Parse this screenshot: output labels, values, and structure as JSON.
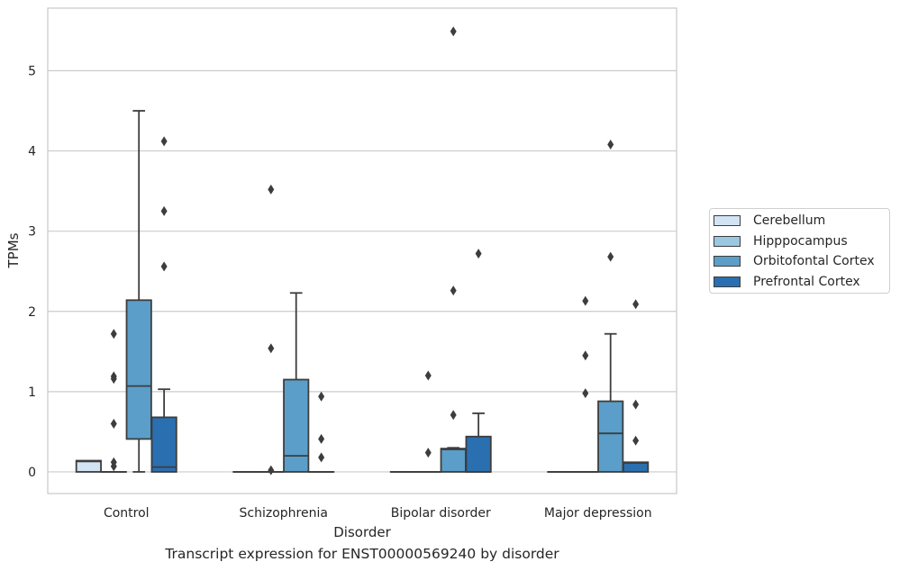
{
  "chart_data": {
    "type": "box",
    "xlabel": "Disorder",
    "ylabel": "TPMs",
    "caption": "Transcript expression for ENST00000569240 by disorder",
    "categories": [
      "Control",
      "Schizophrenia",
      "Bipolar disorder",
      "Major depression"
    ],
    "ylim": [
      -0.27,
      5.78
    ],
    "yticks": [
      0,
      1,
      2,
      3,
      4,
      5
    ],
    "grid": true,
    "legend_position": "right",
    "series": [
      {
        "name": "Cerebellum",
        "color": "#d2e3f3",
        "boxes": [
          {
            "whislo": 0,
            "q1": 0,
            "med": 0.13,
            "q3": 0.14,
            "whishi": 0.14,
            "fliers": []
          },
          {
            "whislo": 0,
            "q1": 0,
            "med": 0,
            "q3": 0,
            "whishi": 0,
            "fliers": []
          },
          {
            "whislo": 0,
            "q1": 0,
            "med": 0,
            "q3": 0,
            "whishi": 0,
            "fliers": []
          },
          {
            "whislo": 0,
            "q1": 0,
            "med": 0,
            "q3": 0,
            "whishi": 0,
            "fliers": []
          }
        ]
      },
      {
        "name": "Hipppocampus",
        "color": "#9ac8e0",
        "boxes": [
          {
            "whislo": 0,
            "q1": 0,
            "med": 0,
            "q3": 0,
            "whishi": 0,
            "fliers": [
              1.72,
              1.19,
              1.16,
              0.6,
              0.12,
              0.07
            ]
          },
          {
            "whislo": 0,
            "q1": 0,
            "med": 0,
            "q3": 0,
            "whishi": 0,
            "fliers": [
              3.52,
              1.54,
              0.02
            ]
          },
          {
            "whislo": 0,
            "q1": 0,
            "med": 0,
            "q3": 0,
            "whishi": 0,
            "fliers": [
              1.2,
              0.24
            ]
          },
          {
            "whislo": 0,
            "q1": 0,
            "med": 0,
            "q3": 0,
            "whishi": 0,
            "fliers": [
              2.13,
              1.45,
              0.98
            ]
          }
        ]
      },
      {
        "name": "Orbitofontal Cortex",
        "color": "#5a9ec9",
        "boxes": [
          {
            "whislo": 0,
            "q1": 0.41,
            "med": 1.07,
            "q3": 2.14,
            "whishi": 4.5,
            "fliers": []
          },
          {
            "whislo": 0,
            "q1": 0,
            "med": 0.2,
            "q3": 1.15,
            "whishi": 2.23,
            "fliers": []
          },
          {
            "whislo": 0,
            "q1": 0,
            "med": 0.28,
            "q3": 0.29,
            "whishi": 0.3,
            "fliers": [
              5.49,
              2.26,
              0.71
            ]
          },
          {
            "whislo": 0,
            "q1": 0,
            "med": 0.48,
            "q3": 0.88,
            "whishi": 1.72,
            "fliers": [
              4.08,
              2.68
            ]
          }
        ]
      },
      {
        "name": "Prefrontal Cortex",
        "color": "#2a6fb0",
        "boxes": [
          {
            "whislo": 0,
            "q1": 0,
            "med": 0.06,
            "q3": 0.68,
            "whishi": 1.03,
            "fliers": [
              4.12,
              3.25,
              2.56
            ]
          },
          {
            "whislo": 0,
            "q1": 0,
            "med": 0,
            "q3": 0,
            "whishi": 0,
            "fliers": [
              0.94,
              0.41,
              0.18
            ]
          },
          {
            "whislo": 0,
            "q1": 0,
            "med": 0,
            "q3": 0.44,
            "whishi": 0.73,
            "fliers": [
              2.72
            ]
          },
          {
            "whislo": 0,
            "q1": 0,
            "med": 0.11,
            "q3": 0.12,
            "whishi": 0.12,
            "fliers": [
              2.09,
              0.84,
              0.39
            ]
          }
        ]
      }
    ]
  }
}
